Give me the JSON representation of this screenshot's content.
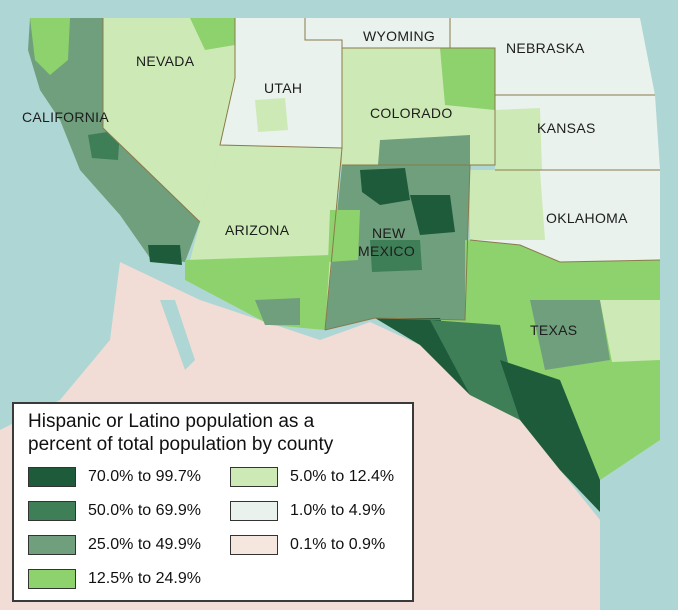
{
  "map": {
    "states": [
      {
        "name": "NEVADA"
      },
      {
        "name": "WYOMING"
      },
      {
        "name": "NEBRASKA"
      },
      {
        "name": "UTAH"
      },
      {
        "name": "CALIFORNIA"
      },
      {
        "name": "COLORADO"
      },
      {
        "name": "KANSAS"
      },
      {
        "name": "OKLAHOMA"
      },
      {
        "name": "ARIZONA"
      },
      {
        "name": "NEW"
      },
      {
        "name": "MEXICO"
      },
      {
        "name": "TEXAS"
      }
    ],
    "colors": {
      "ocean": "#aed6d4",
      "outside": "#f2ddd6",
      "border": "#8a7a4a"
    }
  },
  "legend": {
    "title_line1": "Hispanic or Latino population as a",
    "title_line2": "percent of total population by county",
    "items": [
      {
        "label": "70.0% to 99.7%",
        "color": "#1e5b3b"
      },
      {
        "label": "50.0% to 69.9%",
        "color": "#3e7f58"
      },
      {
        "label": "25.0% to 49.9%",
        "color": "#6f9f7c"
      },
      {
        "label": "12.5% to 24.9%",
        "color": "#8ed26e"
      },
      {
        "label": "5.0% to 12.4%",
        "color": "#cdeab6"
      },
      {
        "label": "1.0% to 4.9%",
        "color": "#e9f2ec"
      },
      {
        "label": "0.1% to 0.9%",
        "color": "#f5e6de"
      }
    ]
  }
}
